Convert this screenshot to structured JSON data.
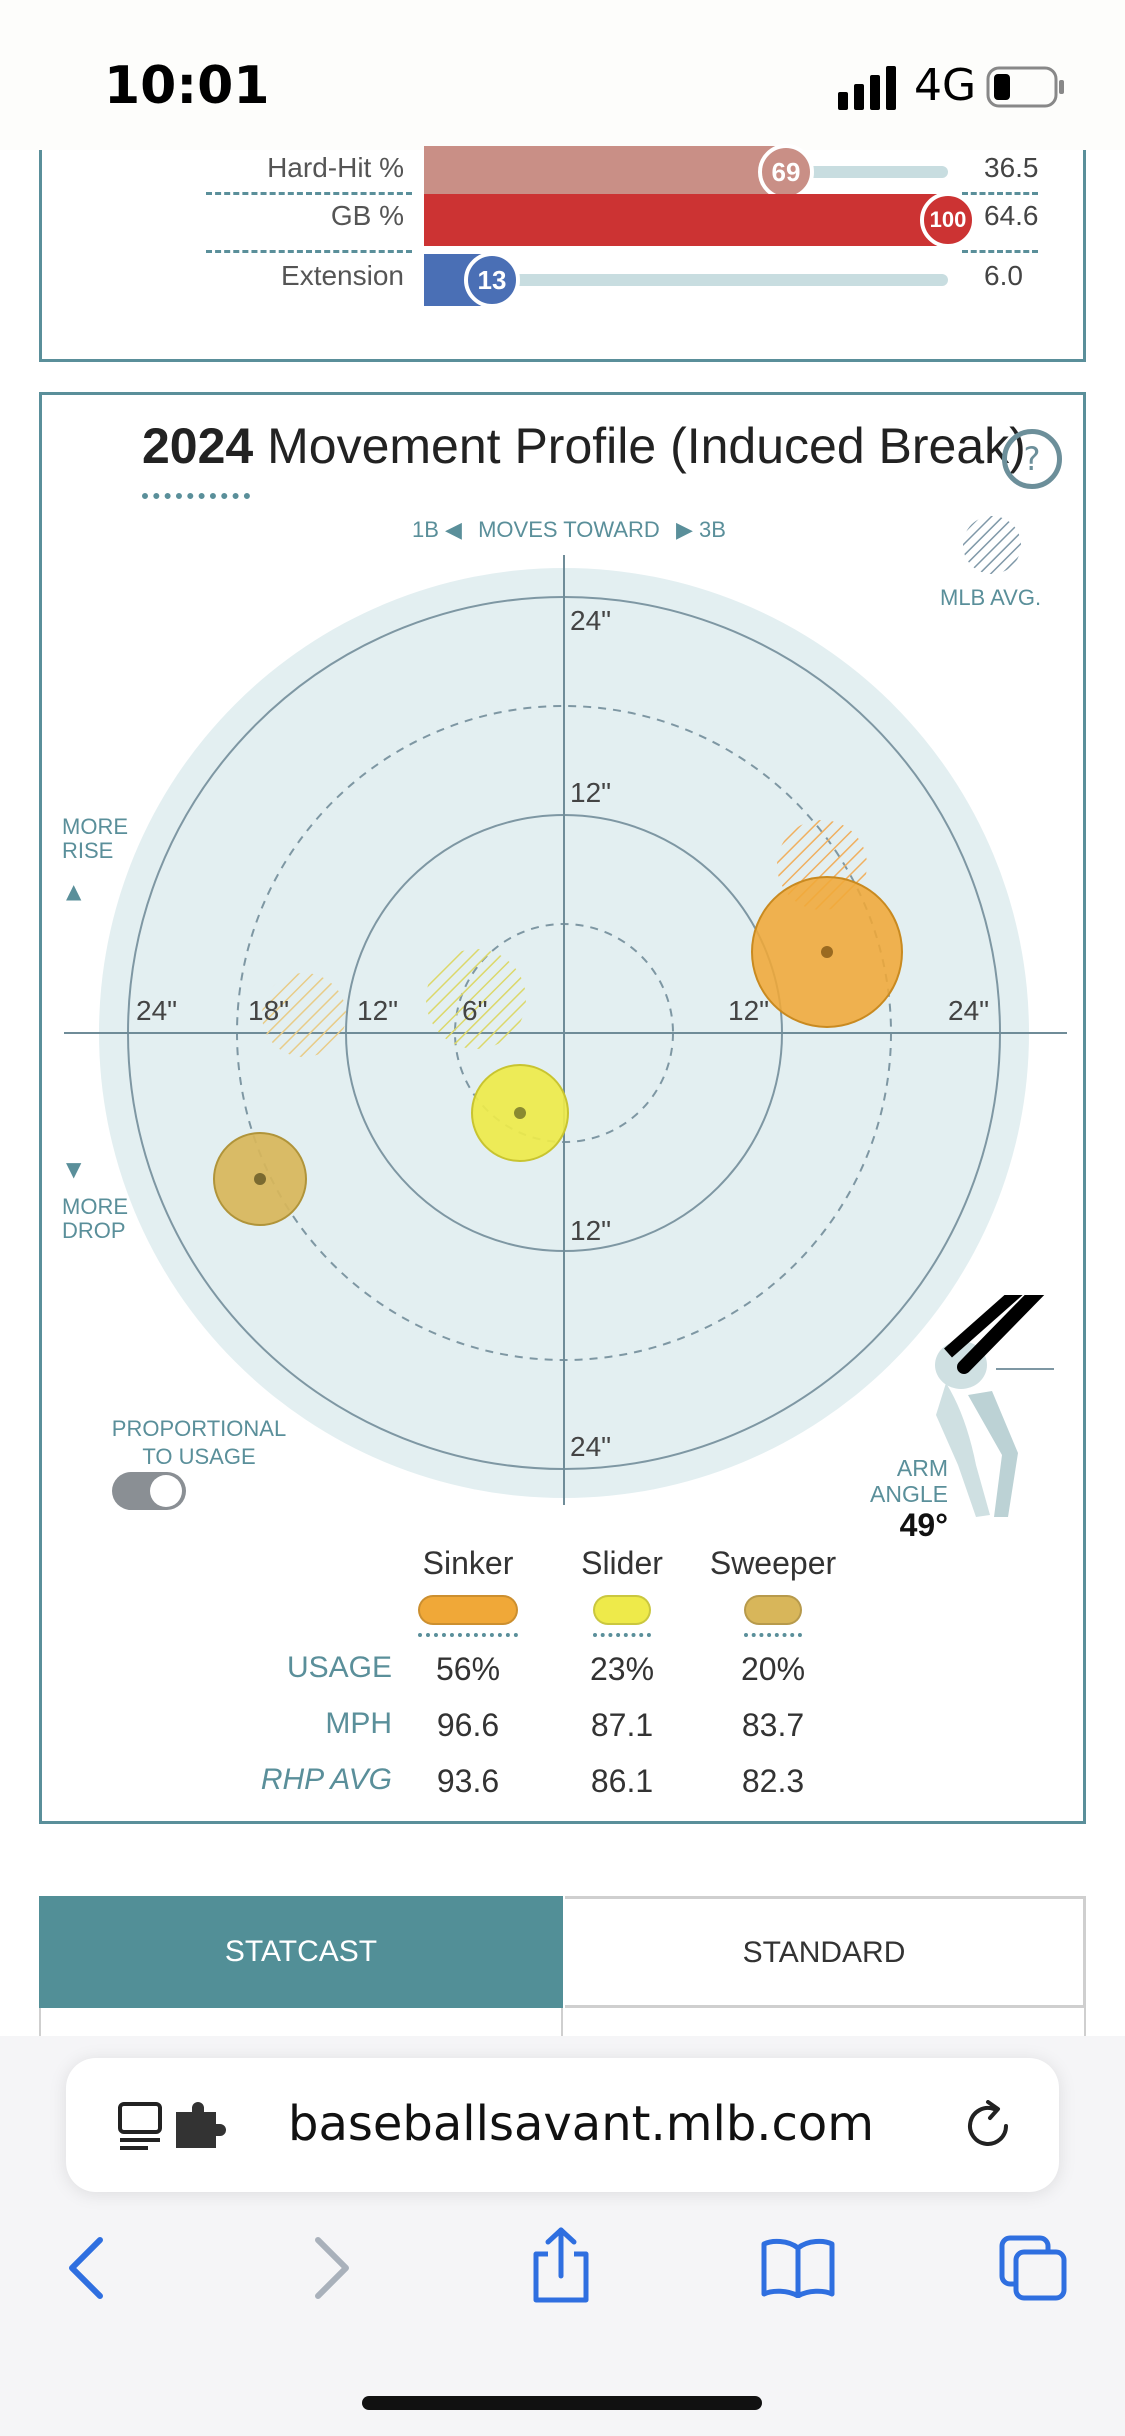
{
  "status": {
    "time": "10:01",
    "network": "4G"
  },
  "percentiles": {
    "rows": [
      {
        "label": "Hard-Hit %",
        "rank": "69",
        "value": "36.5",
        "fill": 0.69,
        "color": "#c98f86"
      },
      {
        "label": "GB %",
        "rank": "100",
        "value": "64.6",
        "fill": 1.0,
        "color": "#cc3333"
      },
      {
        "label": "Extension",
        "rank": "13",
        "value": "6.0",
        "fill": 0.13,
        "color": "#4a6fb5"
      }
    ]
  },
  "movement": {
    "title_year": "2024",
    "title_text": "Movement Profile (Induced Break)",
    "help": "?",
    "direction": {
      "left": "1B",
      "middle": "MOVES TOWARD",
      "right": "3B"
    },
    "mlb_avg": "MLB AVG.",
    "more_rise": [
      "MORE",
      "RISE"
    ],
    "more_drop": [
      "MORE",
      "DROP"
    ],
    "ring_labels": {
      "top_24": "24\"",
      "top_12": "12\"",
      "left_24": "24\"",
      "left_18": "18\"",
      "left_12": "12\"",
      "left_6": "6\"",
      "right_12": "12\"",
      "right_24": "24\"",
      "bottom_12": "12\"",
      "bottom_24": "24\""
    },
    "toggle_label": [
      "PROPORTIONAL",
      "TO USAGE"
    ],
    "arm_angle_label": [
      "ARM",
      "ANGLE"
    ],
    "arm_angle_value": "49°",
    "pitches": [
      {
        "name": "Sinker",
        "usage": "56%",
        "mph": "96.6",
        "rhp_avg": "93.6",
        "color": "#f0a838"
      },
      {
        "name": "Slider",
        "usage": "23%",
        "mph": "87.1",
        "rhp_avg": "86.1",
        "color": "#eeea4a"
      },
      {
        "name": "Sweeper",
        "usage": "20%",
        "mph": "83.7",
        "rhp_avg": "82.3",
        "color": "#d8b65a"
      }
    ],
    "row_labels": {
      "usage": "USAGE",
      "mph": "MPH",
      "rhp_avg": "RHP AVG"
    }
  },
  "tabs": {
    "statcast": "STATCAST",
    "standard": "STANDARD"
  },
  "browser": {
    "url": "baseballsavant.mlb.com"
  },
  "colors": {
    "accent": "#5a8f9a",
    "chart_bg": "#e3eff1"
  }
}
